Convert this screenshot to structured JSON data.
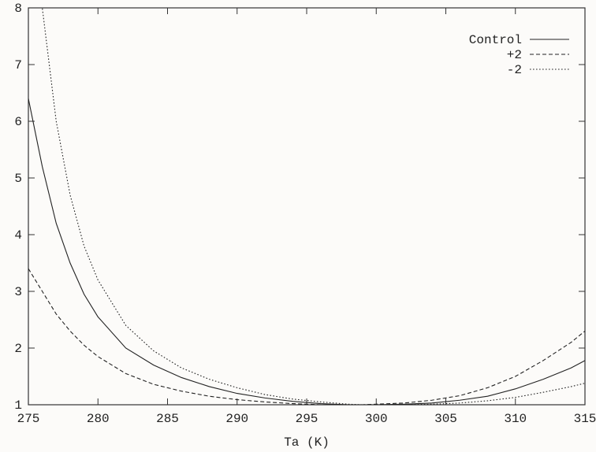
{
  "chart_data": {
    "type": "line",
    "title": "",
    "xlabel": "Ta (K)",
    "ylabel": "",
    "xlim": [
      275,
      315
    ],
    "ylim": [
      1,
      8
    ],
    "x_ticks": [
      "275",
      "280",
      "285",
      "290",
      "295",
      "300",
      "305",
      "310",
      "315"
    ],
    "y_ticks": [
      "1",
      "2",
      "3",
      "4",
      "5",
      "6",
      "7",
      "8"
    ],
    "grid": false,
    "legend_position": "top-right",
    "x": [
      275,
      276,
      277,
      278,
      279,
      280,
      282,
      284,
      286,
      288,
      290,
      292,
      294,
      296,
      298,
      299,
      300,
      302,
      304,
      306,
      308,
      310,
      312,
      314,
      315
    ],
    "series": [
      {
        "name": "Control",
        "dash": "solid",
        "values": [
          6.4,
          5.2,
          4.2,
          3.5,
          2.95,
          2.55,
          2.0,
          1.7,
          1.48,
          1.32,
          1.2,
          1.12,
          1.06,
          1.02,
          1.0,
          1.0,
          1.0,
          1.01,
          1.03,
          1.08,
          1.15,
          1.28,
          1.45,
          1.65,
          1.78
        ]
      },
      {
        "name": "+2",
        "dash": "dashed",
        "values": [
          3.4,
          3.0,
          2.6,
          2.3,
          2.05,
          1.85,
          1.55,
          1.36,
          1.24,
          1.15,
          1.09,
          1.05,
          1.02,
          1.0,
          1.0,
          1.0,
          1.01,
          1.03,
          1.08,
          1.16,
          1.3,
          1.5,
          1.78,
          2.1,
          2.3
        ]
      },
      {
        "name": "-2",
        "dash": "dotted",
        "values": [
          8.9,
          8.0,
          6.0,
          4.7,
          3.8,
          3.2,
          2.4,
          1.95,
          1.65,
          1.45,
          1.3,
          1.18,
          1.1,
          1.05,
          1.01,
          1.0,
          1.0,
          1.0,
          1.01,
          1.03,
          1.07,
          1.13,
          1.22,
          1.32,
          1.38
        ]
      }
    ]
  }
}
